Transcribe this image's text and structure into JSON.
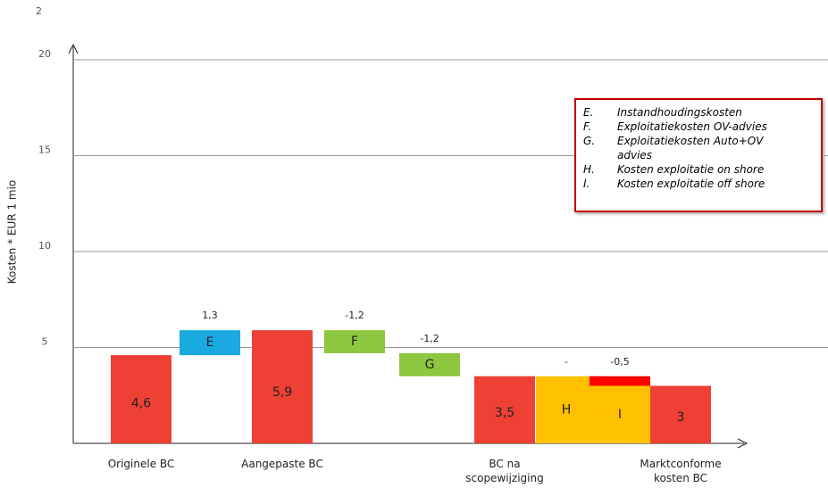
{
  "top_label": "2",
  "chart_data": {
    "type": "waterfall",
    "y_label": "Kosten * EUR 1 mio",
    "categories": [
      "Originele BC",
      null,
      "Aangepaste BC",
      null,
      null,
      "BC na scopewijziging",
      null,
      null,
      "Marktconforme kosten BC"
    ],
    "kinds": [
      "total",
      "delta",
      "total",
      "delta",
      "delta",
      "total",
      "delta",
      "delta",
      "total"
    ],
    "values": [
      4.6,
      1.3,
      5.9,
      -1.2,
      -1.2,
      3.5,
      0,
      -0.5,
      3
    ],
    "value_labels": [
      "4,6",
      "1,3",
      "5,9",
      "-1,2",
      "-1,2",
      "3,5",
      "-",
      "-0,5",
      "3"
    ],
    "bar_labels": [
      null,
      "E",
      null,
      "F",
      "G",
      null,
      "H",
      "I",
      null
    ],
    "colors": [
      "#ee4035",
      "#1ba9e1",
      "#ee4035",
      "#8dc63f",
      "#8dc63f",
      "#ee4035",
      "#ffc000",
      "#ff0000",
      "#ee4035"
    ],
    "base_colors": [
      null,
      null,
      null,
      null,
      null,
      null,
      "#ffc000",
      "#ffc000",
      null
    ],
    "ylim": [
      0,
      20
    ],
    "yticks": [
      5,
      10,
      15,
      20
    ],
    "grid": true,
    "legend": [
      {
        "key": "E.",
        "text": "Instandhoudingskosten"
      },
      {
        "key": "F.",
        "text": "Exploitatiekosten OV-advies"
      },
      {
        "key": "G.",
        "text": "Exploitatiekosten Auto+OV advies"
      },
      {
        "key": "H.",
        "text": "Kosten exploitatie on shore"
      },
      {
        "key": "I.",
        "text": "Kosten exploitatie off shore"
      }
    ]
  }
}
